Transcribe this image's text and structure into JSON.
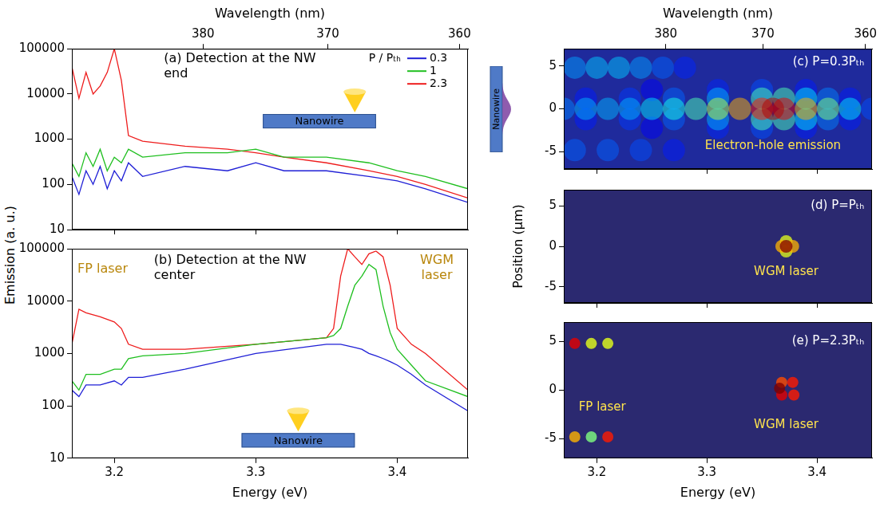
{
  "chart_data": [
    {
      "type": "line",
      "x2_label": "Wavelength (nm)",
      "y_label": "Emission (a. u.)",
      "annotations": [
        "(a) Detection at the NW end",
        "Nanowire"
      ],
      "legend": "upper right",
      "legend_title": "P / Pₜₕ",
      "log": "y",
      "grid": false,
      "tick_labels": "y",
      "xlim": [
        3.17,
        3.45
      ],
      "xticks": [
        3.2,
        3.3,
        3.4
      ],
      "x2lim": [
        3.17,
        3.45
      ],
      "x2ticks": [
        {
          "value": 3.2627,
          "label": "380"
        },
        {
          "value": 3.3509,
          "label": "370"
        },
        {
          "value": 3.444,
          "label": "360"
        }
      ],
      "ylim": [
        10,
        100000
      ],
      "yticks": [
        10,
        100,
        1000,
        10000,
        100000
      ],
      "x": [
        3.17,
        3.175,
        3.18,
        3.185,
        3.19,
        3.195,
        3.2,
        3.205,
        3.21,
        3.22,
        3.25,
        3.28,
        3.3,
        3.32,
        3.35,
        3.38,
        3.4,
        3.42,
        3.45
      ],
      "series": [
        {
          "name": "0.3",
          "color": "#1f1fd6",
          "values": [
            150,
            60,
            200,
            100,
            250,
            80,
            200,
            120,
            300,
            150,
            250,
            200,
            300,
            200,
            200,
            150,
            120,
            80,
            40
          ]
        },
        {
          "name": "1",
          "color": "#1fbf1f",
          "values": [
            300,
            150,
            500,
            250,
            600,
            200,
            400,
            300,
            600,
            400,
            500,
            500,
            600,
            400,
            400,
            300,
            200,
            150,
            80
          ]
        },
        {
          "name": "2.3",
          "color": "#ee1c1c",
          "values": [
            40000,
            8000,
            30000,
            10000,
            15000,
            30000,
            100000,
            20000,
            1200,
            900,
            700,
            600,
            500,
            400,
            300,
            200,
            150,
            100,
            50
          ]
        }
      ]
    },
    {
      "type": "line",
      "x_label": "Energy (eV)",
      "annotations": [
        "(b) Detection at the NW center",
        "FP laser",
        "WGM laser",
        "Nanowire"
      ],
      "log": "y",
      "grid": false,
      "xlim": [
        3.17,
        3.45
      ],
      "xticks": [
        3.2,
        3.3,
        3.4
      ],
      "ylim": [
        10,
        100000
      ],
      "yticks": [
        10,
        100,
        1000,
        10000,
        100000
      ],
      "x": [
        3.17,
        3.175,
        3.18,
        3.19,
        3.2,
        3.205,
        3.21,
        3.22,
        3.25,
        3.3,
        3.35,
        3.355,
        3.36,
        3.365,
        3.37,
        3.375,
        3.38,
        3.385,
        3.39,
        3.395,
        3.4,
        3.41,
        3.42,
        3.45
      ],
      "series": [
        {
          "color": "#1f1fd6",
          "values": [
            200,
            150,
            250,
            250,
            300,
            250,
            350,
            350,
            500,
            1000,
            1500,
            1500,
            1500,
            1400,
            1300,
            1200,
            1000,
            900,
            800,
            700,
            600,
            400,
            250,
            80
          ]
        },
        {
          "color": "#1fbf1f",
          "values": [
            300,
            200,
            400,
            400,
            500,
            500,
            800,
            900,
            1000,
            1500,
            2000,
            2200,
            3000,
            8000,
            20000,
            30000,
            50000,
            40000,
            8000,
            2500,
            1200,
            600,
            300,
            150
          ]
        },
        {
          "color": "#ee1c1c",
          "values": [
            1500,
            7000,
            6000,
            5000,
            4000,
            3000,
            1500,
            1200,
            1200,
            1500,
            2000,
            3000,
            30000,
            100000,
            70000,
            50000,
            80000,
            90000,
            70000,
            20000,
            3000,
            1500,
            1000,
            200
          ]
        }
      ]
    },
    {
      "type": "heatmap",
      "x2_label": "Wavelength (nm)",
      "annotations": [
        "(c) P=0.3Pₜₕ",
        "Electron-hole emission",
        "Nanowire"
      ],
      "grid": false,
      "tick_labels": "y",
      "xlim": [
        3.17,
        3.45
      ],
      "xticks": [
        3.2,
        3.3,
        3.4
      ],
      "x2lim": [
        3.17,
        3.45
      ],
      "x2ticks": [
        {
          "value": 3.2627,
          "label": "380"
        },
        {
          "value": 3.3509,
          "label": "370"
        },
        {
          "value": 3.444,
          "label": "360"
        }
      ],
      "ylim": [
        -7,
        7
      ],
      "yticks": [
        -5,
        0,
        5
      ],
      "cells": [
        [
          3.25,
          2.2,
          0.12
        ],
        [
          3.31,
          2.2,
          0.16
        ],
        [
          3.35,
          2.2,
          0.2
        ],
        [
          3.39,
          2.2,
          0.15
        ],
        [
          3.25,
          -2.2,
          0.12
        ],
        [
          3.31,
          -2.2,
          0.16
        ],
        [
          3.35,
          -2.2,
          0.2
        ],
        [
          3.39,
          -2.2,
          0.15
        ],
        [
          3.18,
          4.8,
          0.28
        ],
        [
          3.2,
          4.8,
          0.32
        ],
        [
          3.22,
          4.8,
          0.32
        ],
        [
          3.24,
          4.8,
          0.28
        ],
        [
          3.26,
          4.8,
          0.22
        ],
        [
          3.28,
          4.8,
          0.16
        ],
        [
          3.18,
          -4.8,
          0.22
        ],
        [
          3.21,
          -4.8,
          0.22
        ],
        [
          3.24,
          -4.8,
          0.2
        ],
        [
          3.27,
          -4.8,
          0.15
        ],
        [
          3.19,
          1.2,
          0.15
        ],
        [
          3.23,
          1.2,
          0.18
        ],
        [
          3.27,
          1.2,
          0.22
        ],
        [
          3.31,
          1.2,
          0.3
        ],
        [
          3.35,
          1.2,
          0.45
        ],
        [
          3.37,
          1.2,
          0.45
        ],
        [
          3.39,
          1.2,
          0.35
        ],
        [
          3.41,
          1.2,
          0.25
        ],
        [
          3.43,
          1.2,
          0.15
        ],
        [
          3.19,
          -1.2,
          0.15
        ],
        [
          3.23,
          -1.2,
          0.18
        ],
        [
          3.27,
          -1.2,
          0.22
        ],
        [
          3.31,
          -1.2,
          0.3
        ],
        [
          3.35,
          -1.2,
          0.45
        ],
        [
          3.37,
          -1.2,
          0.45
        ],
        [
          3.39,
          -1.2,
          0.35
        ],
        [
          3.41,
          -1.2,
          0.25
        ],
        [
          3.43,
          -1.2,
          0.15
        ],
        [
          3.17,
          0,
          0.25
        ],
        [
          3.19,
          0,
          0.3
        ],
        [
          3.21,
          0,
          0.3
        ],
        [
          3.23,
          0,
          0.3
        ],
        [
          3.25,
          0,
          0.35
        ],
        [
          3.27,
          0,
          0.4
        ],
        [
          3.29,
          0,
          0.45
        ],
        [
          3.31,
          0,
          0.55
        ],
        [
          3.33,
          0,
          0.7
        ],
        [
          3.35,
          0,
          0.85
        ],
        [
          3.37,
          0,
          0.9
        ],
        [
          3.36,
          0,
          0.95
        ],
        [
          3.39,
          0,
          0.7
        ],
        [
          3.41,
          0,
          0.5
        ],
        [
          3.43,
          0,
          0.35
        ],
        [
          3.45,
          0,
          0.2
        ]
      ]
    },
    {
      "type": "heatmap",
      "y_label": "Position (µm)",
      "annotations": [
        "(d) P=Pₜₕ",
        "WGM laser"
      ],
      "grid": false,
      "tick_labels": "y",
      "xlim": [
        3.17,
        3.45
      ],
      "xticks": [
        3.2,
        3.3,
        3.4
      ],
      "ylim": [
        -7,
        7
      ],
      "yticks": [
        -5,
        0,
        5
      ],
      "cells": [
        [
          3.372,
          0.6,
          0.6
        ],
        [
          3.372,
          -0.6,
          0.6
        ],
        [
          3.368,
          0,
          0.7
        ],
        [
          3.378,
          0,
          0.7
        ],
        [
          3.372,
          0,
          1.0
        ]
      ]
    },
    {
      "type": "heatmap",
      "x_label": "Energy (eV)",
      "annotations": [
        "(e) P=2.3Pₜₕ",
        "FP laser",
        "WGM laser"
      ],
      "grid": false,
      "xlim": [
        3.17,
        3.45
      ],
      "xticks": [
        3.2,
        3.3,
        3.4
      ],
      "ylim": [
        -7,
        7
      ],
      "yticks": [
        -5,
        0,
        5
      ],
      "cells": [
        [
          3.195,
          4.8,
          0.6
        ],
        [
          3.21,
          4.8,
          0.6
        ],
        [
          3.18,
          4.8,
          0.9
        ],
        [
          3.195,
          -4.8,
          0.5
        ],
        [
          3.18,
          -4.8,
          0.7
        ],
        [
          3.21,
          -4.8,
          0.85
        ],
        [
          3.368,
          0.8,
          0.8
        ],
        [
          3.378,
          0.8,
          0.85
        ],
        [
          3.379,
          -0.5,
          0.85
        ],
        [
          3.368,
          -0.5,
          0.9
        ],
        [
          3.366,
          0.2,
          1.0
        ]
      ]
    }
  ]
}
